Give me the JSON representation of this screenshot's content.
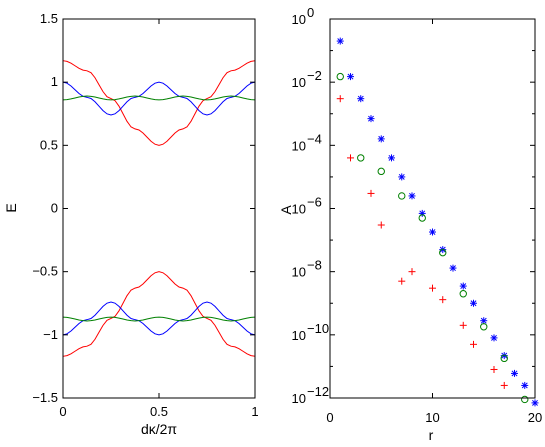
{
  "chart_data": [
    {
      "type": "line",
      "xlabel": "dκ/2π",
      "ylabel": "E",
      "xlim": [
        0,
        1
      ],
      "ylim": [
        -1.5,
        1.5
      ],
      "xticks": [
        0,
        0.5,
        1
      ],
      "xtick_labels": [
        "0",
        "0.5",
        "1"
      ],
      "yticks": [
        -1.5,
        -1,
        -0.5,
        0,
        0.5,
        1,
        1.5
      ],
      "ytick_labels": [
        "−1.5",
        "−1",
        "−0.5",
        "0",
        "0.5",
        "1",
        "1.5"
      ],
      "series": [
        {
          "color": "#ff0000",
          "band": "upper",
          "x": [
            0,
            0.125,
            0.25,
            0.375,
            0.5,
            0.625,
            0.75,
            0.875,
            1
          ],
          "y": [
            1.17,
            1.09,
            0.87,
            0.63,
            0.5,
            0.63,
            0.87,
            1.09,
            1.17
          ]
        },
        {
          "color": "#0000ff",
          "band": "upper",
          "x": [
            0,
            0.125,
            0.25,
            0.375,
            0.5,
            0.625,
            0.75,
            0.875,
            1
          ],
          "y": [
            1.0,
            0.88,
            0.74,
            0.88,
            1.0,
            0.88,
            0.74,
            0.88,
            1.0
          ]
        },
        {
          "color": "#008000",
          "band": "upper",
          "x": [
            0,
            0.125,
            0.25,
            0.375,
            0.5,
            0.625,
            0.75,
            0.875,
            1
          ],
          "y": [
            0.86,
            0.89,
            0.86,
            0.89,
            0.86,
            0.89,
            0.86,
            0.89,
            0.86
          ]
        },
        {
          "color": "#ff0000",
          "band": "lower",
          "x": [
            0,
            0.125,
            0.25,
            0.375,
            0.5,
            0.625,
            0.75,
            0.875,
            1
          ],
          "y": [
            -1.17,
            -1.09,
            -0.87,
            -0.63,
            -0.5,
            -0.63,
            -0.87,
            -1.09,
            -1.17
          ]
        },
        {
          "color": "#0000ff",
          "band": "lower",
          "x": [
            0,
            0.125,
            0.25,
            0.375,
            0.5,
            0.625,
            0.75,
            0.875,
            1
          ],
          "y": [
            -1.0,
            -0.88,
            -0.74,
            -0.88,
            -1.0,
            -0.88,
            -0.74,
            -0.88,
            -1.0
          ]
        },
        {
          "color": "#008000",
          "band": "lower",
          "x": [
            0,
            0.125,
            0.25,
            0.375,
            0.5,
            0.625,
            0.75,
            0.875,
            1
          ],
          "y": [
            -0.86,
            -0.89,
            -0.86,
            -0.89,
            -0.86,
            -0.89,
            -0.86,
            -0.89,
            -0.86
          ]
        }
      ]
    },
    {
      "type": "scatter",
      "xlabel": "r",
      "ylabel": "A",
      "xlim": [
        0,
        20
      ],
      "ylim": [
        1e-12,
        1
      ],
      "yscale": "log",
      "xticks": [
        0,
        10,
        20
      ],
      "xtick_labels": [
        "0",
        "10",
        "20"
      ],
      "ytick_exponents": [
        0,
        -2,
        -4,
        -6,
        -8,
        -10,
        -12
      ],
      "ytick_base": "10",
      "ytick_exponent_labels": [
        "0",
        "−2",
        "−4",
        "−6",
        "−8",
        "−10",
        "−12"
      ],
      "series": [
        {
          "marker": "*",
          "color": "#0000ff",
          "x": [
            1,
            2,
            3,
            4,
            5,
            6,
            7,
            8,
            9,
            10,
            11,
            12,
            13,
            14,
            15,
            16,
            17,
            18,
            19,
            20
          ],
          "y": [
            0.2,
            0.015,
            0.003,
            0.0007,
            0.00016,
            4e-05,
            1e-05,
            2.5e-06,
            7e-07,
            1.8e-07,
            5e-08,
            1.3e-08,
            3.5e-09,
            1e-09,
            2.8e-10,
            8e-11,
            2.2e-11,
            6e-12,
            2.5e-12,
            7e-13
          ]
        },
        {
          "marker": "o",
          "color": "#008000",
          "x": [
            1,
            3,
            5,
            7,
            9,
            11,
            13,
            15,
            17,
            19
          ],
          "y": [
            0.015,
            4e-05,
            1.5e-05,
            2.5e-06,
            5e-07,
            4e-08,
            2e-09,
            1.8e-10,
            1.8e-11,
            9e-13
          ]
        },
        {
          "marker": "+",
          "color": "#ff0000",
          "x": [
            1,
            2,
            4,
            5,
            7,
            8,
            10,
            11,
            13,
            14,
            16,
            17
          ],
          "y": [
            0.003,
            4e-05,
            3e-06,
            3e-07,
            5e-09,
            1e-08,
            3e-09,
            1.3e-09,
            2e-10,
            5e-11,
            8e-12,
            2.5e-12
          ]
        }
      ]
    }
  ]
}
